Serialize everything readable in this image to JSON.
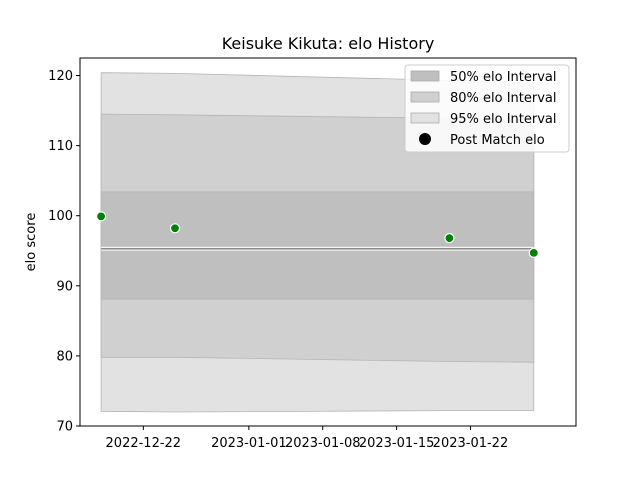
{
  "chart_data": {
    "type": "line",
    "title": "Keisuke Kikuta: elo History",
    "xlabel": "",
    "ylabel": "elo score",
    "x_type": "date",
    "xlim": [
      "2022-12-16",
      "2023-02-01"
    ],
    "ylim": [
      70,
      122.5
    ],
    "x_ticks": [
      "2022-12-22",
      "2023-01-01",
      "2023-01-08",
      "2023-01-15",
      "2023-01-22"
    ],
    "y_ticks": [
      70,
      80,
      90,
      100,
      110,
      120
    ],
    "grid": false,
    "legend_position": "top-right",
    "x": [
      "2022-12-18",
      "2022-12-25",
      "2023-01-20",
      "2023-01-28"
    ],
    "bands": [
      {
        "name": "95% elo Interval",
        "color": "#e2e2e2",
        "lower": [
          72.1,
          72.0,
          72.2,
          72.2
        ],
        "upper": [
          120.4,
          120.3,
          119.3,
          119.0
        ]
      },
      {
        "name": "80% elo Interval",
        "color": "#d0d0d0",
        "lower": [
          79.8,
          79.8,
          79.2,
          79.1
        ],
        "upper": [
          114.5,
          114.4,
          113.9,
          113.7
        ]
      },
      {
        "name": "50% elo Interval",
        "color": "#bfbfbf",
        "lower": [
          88.1,
          88.1,
          88.1,
          88.1
        ],
        "upper": [
          103.4,
          103.4,
          103.4,
          103.4
        ]
      }
    ],
    "mean": [
      95.3,
      95.3,
      95.3,
      95.3
    ],
    "post_match": {
      "name": "Post Match elo",
      "color": "#008000",
      "values": [
        99.9,
        98.2,
        96.8,
        94.7
      ]
    },
    "legend_entries": [
      "50% elo Interval",
      "80% elo Interval",
      "95% elo Interval",
      "Post Match elo"
    ]
  }
}
